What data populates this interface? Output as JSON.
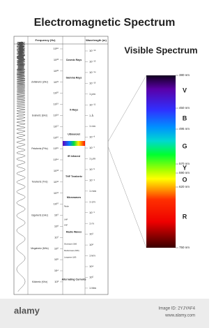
{
  "title": "Electromagnetic Spectrum",
  "table": {
    "frequency_header": "Frequency (Hz)",
    "wavelength_header": "Wavelength (m)",
    "frequencies": [
      "10²⁴",
      "10²³",
      "10²²",
      "10²¹",
      "10²⁰",
      "10¹⁹",
      "10¹⁸",
      "10¹⁷",
      "10¹⁶",
      "10¹⁵",
      "10¹⁴",
      "10¹³",
      "10¹²",
      "10¹¹",
      "10¹⁰",
      "10⁹",
      "10⁸",
      "10⁷",
      "10⁶",
      "10⁵",
      "10⁴",
      "10³"
    ],
    "units": [
      "Zettahertz (ZHz)",
      "Exahertz (EHz)",
      "Petahertz (PHz)",
      "Terahertz (THz)",
      "Gigahertz (GHz)",
      "Megahertz (MHz)",
      "Kilohertz (KHz)"
    ],
    "wavelengths": [
      "10⁻¹⁶",
      "10⁻¹⁵",
      "10⁻¹⁴",
      "10⁻¹³",
      "1 pm",
      "10⁻¹¹",
      "1 Å",
      "1 nm",
      "10⁻⁸",
      "10⁻⁷",
      "1 µm",
      "10⁻⁵",
      "10⁻⁴",
      "1 mm",
      "1 cm",
      "10⁻¹",
      "1 m",
      "10¹",
      "10²",
      "1 km",
      "10⁴",
      "10⁵",
      "1 Mm"
    ],
    "bands": [
      "Cosmic Rays",
      "Gamma Rays",
      "X-Rays",
      "Ultraviolet",
      "IR Infrared",
      "THF Terahertz",
      "Microwaves",
      "Radio Waves",
      "Alternating Currents"
    ],
    "sub_bands": [
      "Radar",
      "UHF",
      "VHF",
      "Shortwave (SW)",
      "Mediumwave (MW)",
      "Longwave (LW)"
    ]
  },
  "visible": {
    "title": "Visible Spectrum",
    "colors": [
      "V",
      "B",
      "G",
      "Y",
      "O",
      "R"
    ],
    "wavelengths": [
      "380 nm",
      "450 nm",
      "495 nm",
      "570 nm",
      "590 nm",
      "620 nm",
      "750 nm"
    ]
  },
  "footer": {
    "brand": "alamy",
    "image_id": "Image ID: 2YJYAF4",
    "site": "www.alamy.com"
  }
}
